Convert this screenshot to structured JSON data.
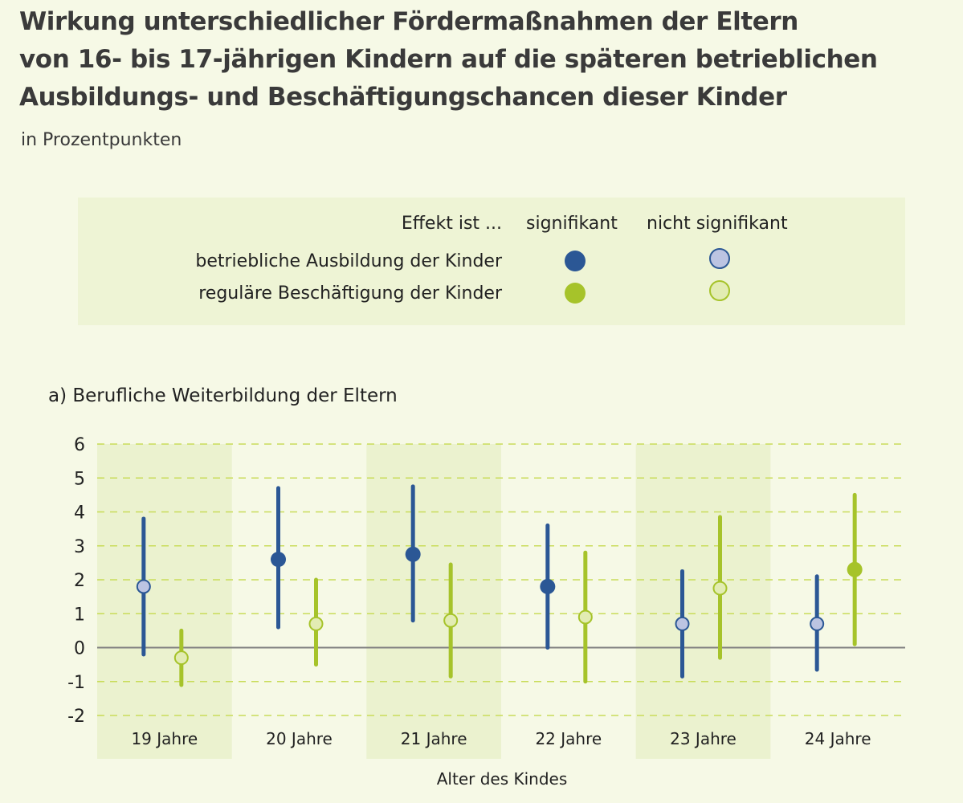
{
  "header": {
    "title_lines": [
      "Wirkung unterschiedlicher Fördermaßnahmen der Eltern",
      "von 16- bis 17-jährigen Kindern auf die späteren betrieblichen",
      "Ausbildungs- und Beschäftigungschancen dieser Kinder"
    ],
    "subtitle": "in Prozentpunkten"
  },
  "legend": {
    "header_label": "Effekt ist ...",
    "col_significant": "signifikant",
    "col_not_significant": "nicht signifikant",
    "rows": [
      {
        "label": "betriebliche Ausbildung der Kinder",
        "series": "ausbildung"
      },
      {
        "label": "reguläre Beschäftigung der Kinder",
        "series": "beschaeftigung"
      }
    ]
  },
  "colors": {
    "ausbildung_sig": "#2b5795",
    "ausbildung_nonsig_fill": "#bcc4e2",
    "ausbildung_nonsig_stroke": "#2b5795",
    "beschaeftigung_sig": "#a6c32a",
    "beschaeftigung_nonsig_fill": "#e2ecb3",
    "beschaeftigung_nonsig_stroke": "#a6c32a",
    "grid": "#c9dc5a",
    "band": "#ebf2cf",
    "zero_line": "#808080"
  },
  "chart_data": {
    "type": "scatter",
    "subtype": "point-estimate-with-confidence-interval",
    "title": "a) Berufliche Weiterbildung der Eltern",
    "xlabel": "Alter des Kindes",
    "ylabel": "",
    "categories": [
      "19 Jahre",
      "20 Jahre",
      "21 Jahre",
      "22 Jahre",
      "23 Jahre",
      "24 Jahre"
    ],
    "ylim": [
      -2,
      6
    ],
    "yticks": [
      6,
      5,
      4,
      3,
      2,
      1,
      0,
      -1,
      -2
    ],
    "grid": true,
    "legend_position": "top",
    "series": [
      {
        "name": "betriebliche Ausbildung der Kinder",
        "key": "ausbildung",
        "values": [
          1.8,
          2.6,
          2.75,
          1.8,
          0.7,
          0.7
        ],
        "lower": [
          -0.2,
          0.6,
          0.8,
          0.0,
          -0.85,
          -0.65
        ],
        "upper": [
          3.8,
          4.7,
          4.75,
          3.6,
          2.25,
          2.1
        ],
        "significant": [
          false,
          true,
          true,
          true,
          false,
          false
        ]
      },
      {
        "name": "reguläre Beschäftigung der Kinder",
        "key": "beschaeftigung",
        "values": [
          -0.3,
          0.7,
          0.8,
          0.9,
          1.75,
          2.3
        ],
        "lower": [
          -1.1,
          -0.5,
          -0.85,
          -1.0,
          -0.3,
          0.1
        ],
        "upper": [
          0.5,
          2.0,
          2.45,
          2.8,
          3.85,
          4.5
        ],
        "significant": [
          false,
          false,
          false,
          false,
          false,
          true
        ]
      }
    ]
  }
}
